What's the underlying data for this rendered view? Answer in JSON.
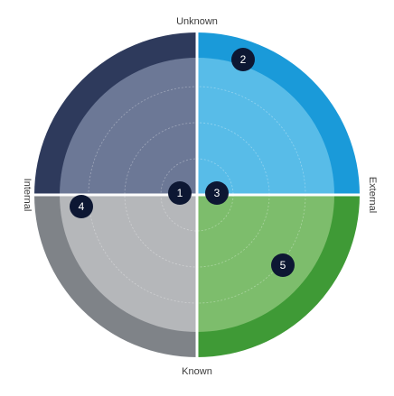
{
  "axis_labels": {
    "top": "Unknown",
    "bottom": "Known",
    "left": "Internal",
    "right": "External"
  },
  "quadrants": [
    {
      "id": "internal-unknown",
      "outer_color": "#2e3a5c",
      "inner_color": "#6c7896"
    },
    {
      "id": "external-unknown",
      "outer_color": "#1a9ad9",
      "inner_color": "#58bce8"
    },
    {
      "id": "internal-known",
      "outer_color": "#7f8388",
      "inner_color": "#b5b7ba"
    },
    {
      "id": "external-known",
      "outer_color": "#3f9a36",
      "inner_color": "#7dbd6c"
    }
  ],
  "marker_color": "#0d1733",
  "markers": [
    {
      "label": "1"
    },
    {
      "label": "2"
    },
    {
      "label": "3"
    },
    {
      "label": "4"
    },
    {
      "label": "5"
    }
  ]
}
